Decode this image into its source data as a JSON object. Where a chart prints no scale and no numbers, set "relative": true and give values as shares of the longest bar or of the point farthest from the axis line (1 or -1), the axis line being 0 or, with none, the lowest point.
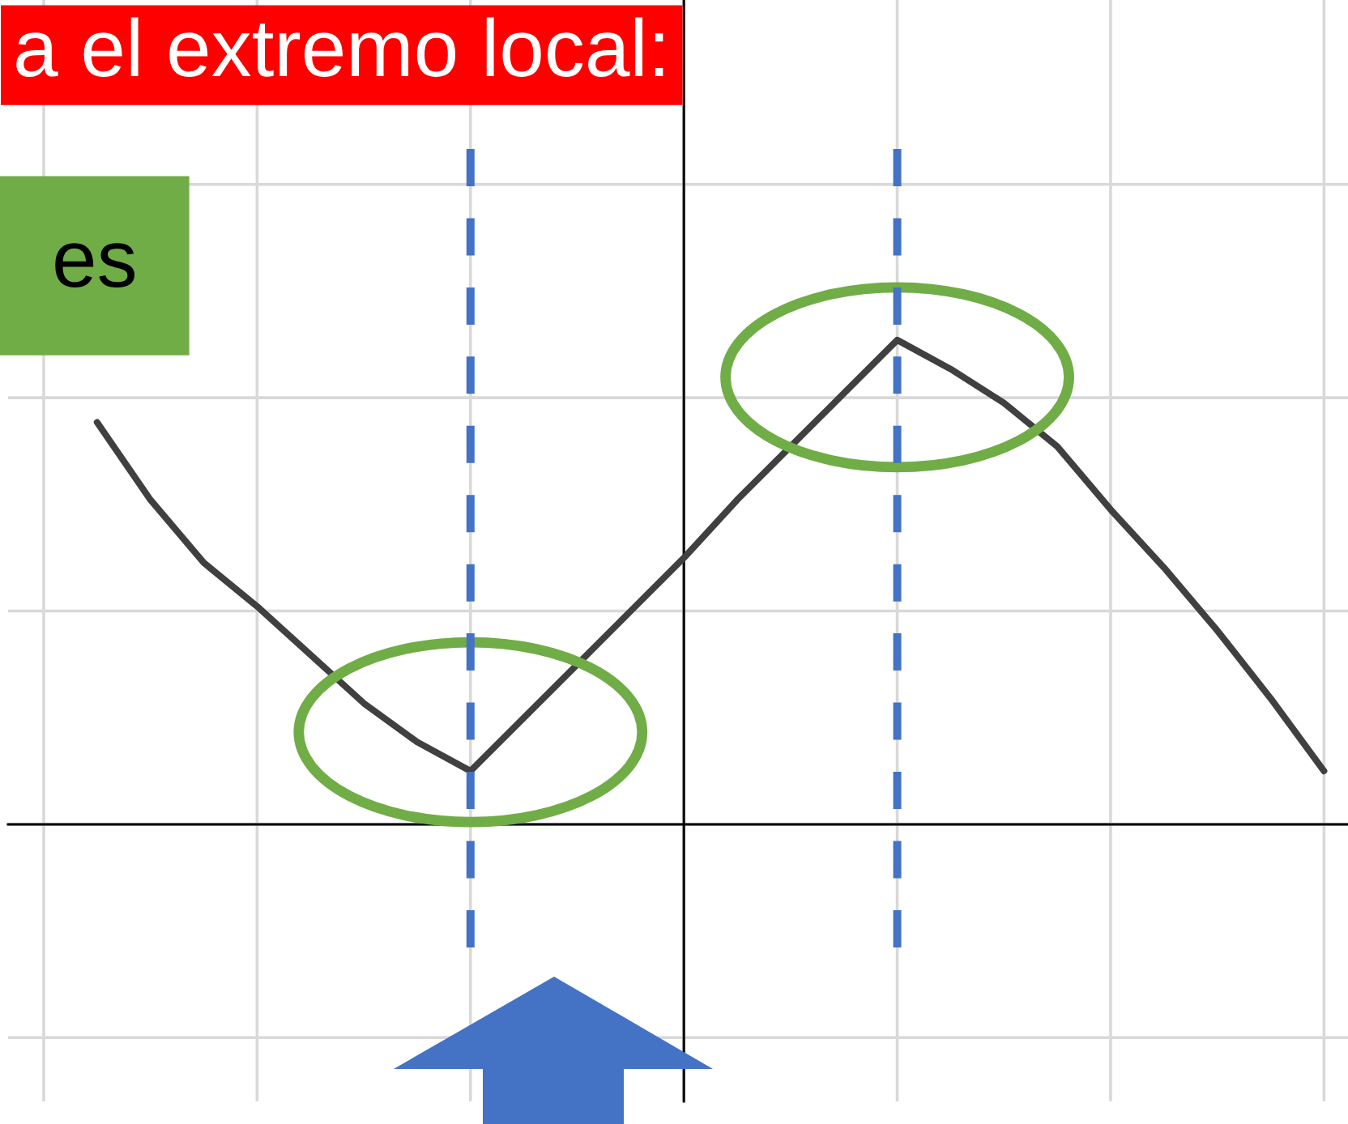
{
  "chart_data": {
    "type": "line",
    "relative": true,
    "categories": [
      null,
      null,
      null,
      null,
      null,
      null,
      null,
      null,
      null,
      null,
      null,
      null,
      null,
      null,
      null,
      null,
      null,
      null,
      null,
      null,
      null,
      null,
      null,
      null,
      null
    ],
    "values": [
      null,
      0.83,
      0.67,
      0.54,
      0.45,
      0.35,
      0.25,
      0.17,
      0.11,
      0.22,
      0.33,
      0.44,
      0.55,
      0.67,
      0.78,
      0.89,
      1,
      0.94,
      0.87,
      0.78,
      0.65,
      0.53,
      0.4,
      0.26,
      0.11
    ],
    "color": "#404040",
    "grid": true,
    "annotations": [
      "a el extremo local:",
      "es"
    ]
  }
}
